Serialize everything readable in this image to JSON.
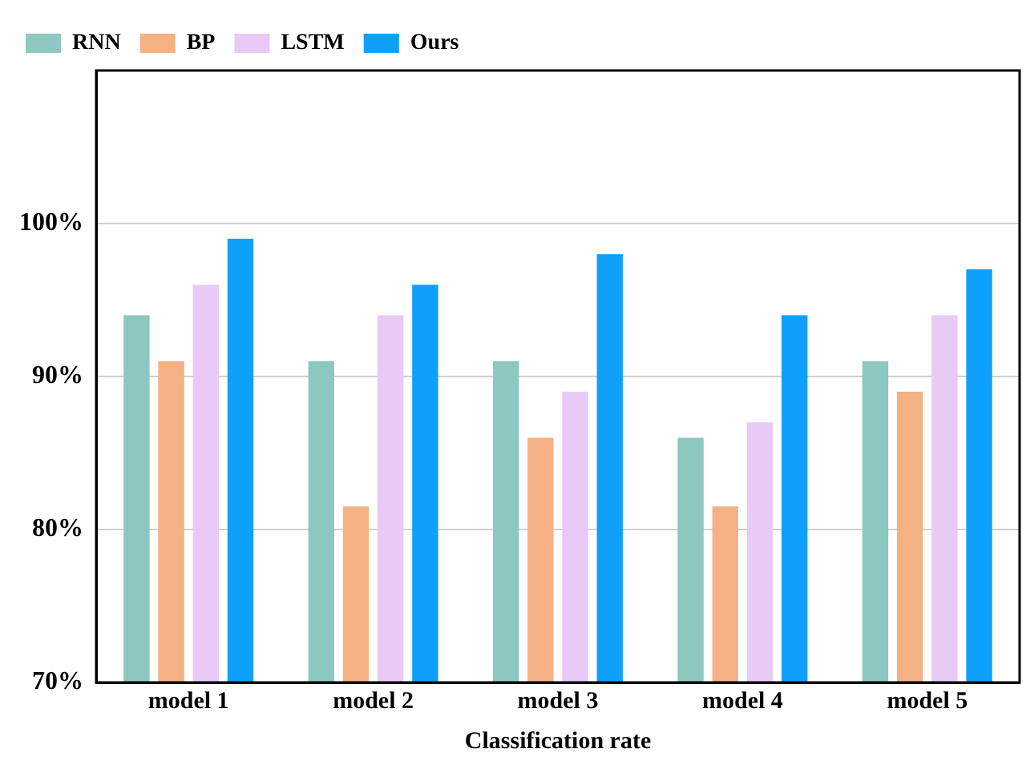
{
  "chart_data": {
    "type": "bar",
    "xlabel": "Classification rate",
    "categories": [
      "model 1",
      "model 2",
      "model 3",
      "model 4",
      "model 5"
    ],
    "series": [
      {
        "name": "RNN",
        "color": "#8dc8c0",
        "values": [
          94,
          91,
          91,
          86,
          91
        ]
      },
      {
        "name": "BP",
        "color": "#f4b183",
        "values": [
          91,
          81.5,
          86,
          81.5,
          89
        ]
      },
      {
        "name": "LSTM",
        "color": "#e9c9f6",
        "values": [
          96,
          94,
          89,
          87,
          94
        ]
      },
      {
        "name": "Ours",
        "color": "#0fa0fb",
        "values": [
          99,
          96,
          98,
          94,
          97
        ]
      }
    ],
    "ylim": [
      70,
      110
    ],
    "yticks": [
      {
        "value": 70,
        "label": "70%"
      },
      {
        "value": 80,
        "label": "80%"
      },
      {
        "value": 90,
        "label": "90%"
      },
      {
        "value": 100,
        "label": "100%"
      }
    ],
    "grid": "y",
    "legend": "top left"
  }
}
